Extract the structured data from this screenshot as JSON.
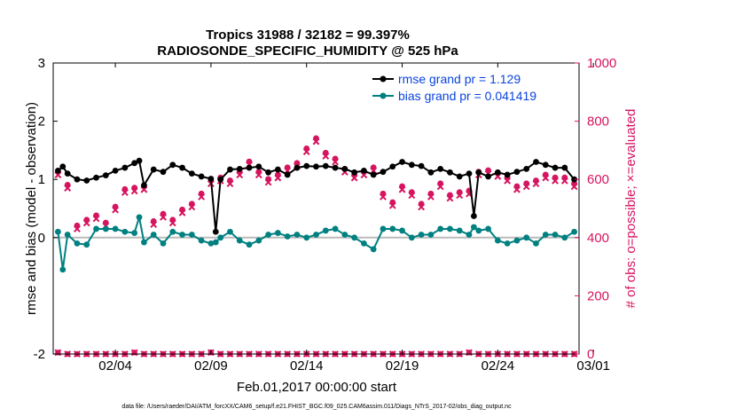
{
  "chart_data": {
    "type": "line",
    "title": "Tropics 31988 / 32182 = 99.397%",
    "subtitle": "RADIOSONDE_SPECIFIC_HUMIDITY @ 525 hPa",
    "xlabel": "Feb.01,2017 00:00:00 start",
    "ylabel": "rmse and bias (model - observation)",
    "ylabel_right": "# of obs: o=possible; ×=evaluated",
    "footnote": "data file: /Users/raeder/DAI/ATM_forcXX/CAM6_setup/f.e21.FHIST_BGC.f09_025.CAM6assim.011/Diags_NTrS_2017-02/obs_diag_output.nc",
    "xlim": [
      0.75,
      28.25
    ],
    "ylim": [
      -2,
      3
    ],
    "ylim_right": [
      0,
      1000
    ],
    "x_ticks": [
      {
        "value": 4,
        "label": "02/04"
      },
      {
        "value": 9,
        "label": "02/09"
      },
      {
        "value": 14,
        "label": "02/14"
      },
      {
        "value": 19,
        "label": "02/19"
      },
      {
        "value": 24,
        "label": "02/24"
      },
      {
        "value": 29,
        "label": "03/01"
      }
    ],
    "y_ticks": [
      "-2",
      "0",
      "1",
      "2",
      "3"
    ],
    "y_ticks_right": [
      "0",
      "200",
      "400",
      "600",
      "800",
      "1000"
    ],
    "colors": {
      "rmse": "#000000",
      "bias": "#008080",
      "obs": "#d6145f",
      "legend_text": "#0a44dd",
      "zero_line": "#bbbbbb"
    },
    "legend": [
      {
        "name": "rmse grand pr = 1.129",
        "color": "#000000"
      },
      {
        "name": "bias grand pr = 0.041419",
        "color": "#008080"
      }
    ],
    "series": [
      {
        "name": "rmse",
        "axis": "left",
        "x": [
          1,
          1.25,
          1.5,
          2,
          2.5,
          3,
          3.5,
          4,
          4.5,
          5,
          5.25,
          5.5,
          6,
          6.5,
          7,
          7.5,
          8,
          8.5,
          9,
          9.25,
          9.5,
          10,
          10.5,
          11,
          11.5,
          12,
          12.5,
          13,
          13.5,
          14,
          14.5,
          15,
          15.5,
          16,
          16.5,
          17,
          17.5,
          18,
          18.5,
          19,
          19.5,
          20,
          20.5,
          21,
          21.5,
          22,
          22.5,
          22.75,
          23,
          23.5,
          24,
          24.5,
          25,
          25.5,
          26,
          26.5,
          27,
          27.5,
          28
        ],
        "values": [
          1.15,
          1.22,
          1.1,
          1.0,
          0.98,
          1.03,
          1.07,
          1.15,
          1.2,
          1.28,
          1.32,
          0.9,
          1.17,
          1.13,
          1.25,
          1.2,
          1.1,
          1.05,
          1.01,
          0.1,
          1.0,
          1.17,
          1.18,
          1.2,
          1.22,
          1.12,
          1.17,
          1.08,
          1.2,
          1.23,
          1.22,
          1.23,
          1.2,
          1.18,
          1.12,
          1.15,
          1.08,
          1.13,
          1.22,
          1.3,
          1.25,
          1.23,
          1.12,
          1.18,
          1.12,
          1.05,
          1.1,
          0.37,
          1.12,
          1.05,
          1.12,
          1.08,
          1.13,
          1.18,
          1.3,
          1.25,
          1.2,
          1.2,
          1.0
        ]
      },
      {
        "name": "bias",
        "axis": "left",
        "x": [
          1,
          1.25,
          1.5,
          2,
          2.5,
          3,
          3.5,
          4,
          4.5,
          5,
          5.25,
          5.5,
          6,
          6.5,
          7,
          7.5,
          8,
          8.5,
          9,
          9.25,
          9.5,
          10,
          10.5,
          11,
          11.5,
          12,
          12.5,
          13,
          13.5,
          14,
          14.5,
          15,
          15.5,
          16,
          16.5,
          17,
          17.5,
          18,
          18.5,
          19,
          19.5,
          20,
          20.5,
          21,
          21.5,
          22,
          22.5,
          22.75,
          23,
          23.5,
          24,
          24.5,
          25,
          25.5,
          26,
          26.5,
          27,
          27.5,
          28
        ],
        "values": [
          0.1,
          -0.55,
          0.05,
          -0.1,
          -0.12,
          0.15,
          0.15,
          0.15,
          0.1,
          0.08,
          0.35,
          -0.08,
          0.05,
          -0.1,
          0.1,
          0.05,
          0.05,
          -0.05,
          -0.1,
          -0.08,
          0.0,
          0.1,
          -0.05,
          -0.12,
          -0.05,
          0.05,
          0.08,
          0.02,
          0.05,
          0.0,
          0.05,
          0.12,
          0.15,
          0.05,
          0.0,
          -0.1,
          -0.2,
          0.15,
          0.15,
          0.12,
          0.0,
          0.05,
          0.05,
          0.15,
          0.15,
          0.12,
          0.05,
          0.18,
          0.12,
          0.15,
          -0.05,
          -0.1,
          -0.05,
          0.0,
          -0.1,
          0.05,
          0.05,
          0.0,
          0.1
        ]
      },
      {
        "name": "obs possible",
        "axis": "right",
        "x": [
          1,
          1.5,
          2,
          2.5,
          3,
          3.5,
          4,
          4.5,
          5,
          5.5,
          6,
          6.5,
          7,
          7.5,
          8,
          8.5,
          9,
          9.5,
          10,
          10.5,
          11,
          11.5,
          12,
          12.5,
          13,
          13.5,
          14,
          14.5,
          15,
          15.5,
          16,
          16.5,
          17,
          17.5,
          18,
          18.5,
          19,
          19.5,
          20,
          20.5,
          21,
          21.5,
          22,
          22.5,
          23,
          23.5,
          24,
          24.5,
          25,
          25.5,
          26,
          26.5,
          27,
          27.5,
          28
        ],
        "values": [
          620,
          575,
          435,
          455,
          470,
          445,
          500,
          560,
          565,
          570,
          450,
          475,
          455,
          490,
          510,
          545,
          590,
          600,
          590,
          620,
          655,
          620,
          595,
          610,
          635,
          650,
          700,
          735,
          685,
          665,
          630,
          610,
          620,
          635,
          545,
          515,
          570,
          550,
          510,
          545,
          580,
          540,
          550,
          555,
          620,
          625,
          615,
          600,
          570,
          580,
          590,
          610,
          600,
          600,
          580
        ]
      },
      {
        "name": "obs evaluated",
        "axis": "right",
        "x": [
          1,
          1.5,
          2,
          2.5,
          3,
          3.5,
          4,
          4.5,
          5,
          5.5,
          6,
          6.5,
          7,
          7.5,
          8,
          8.5,
          9,
          9.5,
          10,
          10.5,
          11,
          11.5,
          12,
          12.5,
          13,
          13.5,
          14,
          14.5,
          15,
          15.5,
          16,
          16.5,
          17,
          17.5,
          18,
          18.5,
          19,
          19.5,
          20,
          20.5,
          21,
          21.5,
          22,
          22.5,
          23,
          23.5,
          24,
          24.5,
          25,
          25.5,
          26,
          26.5,
          27,
          27.5,
          28
        ],
        "values": [
          615,
          570,
          430,
          450,
          465,
          440,
          495,
          555,
          560,
          565,
          445,
          470,
          450,
          485,
          505,
          540,
          585,
          595,
          585,
          615,
          650,
          615,
          590,
          605,
          630,
          645,
          695,
          730,
          680,
          660,
          625,
          605,
          615,
          630,
          540,
          510,
          565,
          545,
          505,
          540,
          575,
          535,
          545,
          550,
          615,
          620,
          610,
          595,
          565,
          575,
          585,
          605,
          595,
          595,
          575
        ]
      },
      {
        "name": "obs baseline",
        "axis": "right",
        "x": [
          1,
          1.5,
          2,
          2.5,
          3,
          3.5,
          4,
          4.5,
          5,
          5.5,
          6,
          6.5,
          7,
          7.5,
          8,
          8.5,
          9,
          9.5,
          10,
          10.5,
          11,
          11.5,
          12,
          12.5,
          13,
          13.5,
          14,
          14.5,
          15,
          15.5,
          16,
          16.5,
          17,
          17.5,
          18,
          18.5,
          19,
          19.5,
          20,
          20.5,
          21,
          21.5,
          22,
          22.5,
          23,
          23.5,
          24,
          24.5,
          25,
          25.5,
          26,
          26.5,
          27,
          27.5,
          28
        ],
        "values": [
          5,
          0,
          0,
          0,
          0,
          0,
          0,
          0,
          5,
          0,
          0,
          0,
          0,
          0,
          0,
          0,
          5,
          0,
          0,
          0,
          0,
          0,
          0,
          0,
          0,
          0,
          0,
          0,
          0,
          0,
          0,
          0,
          0,
          0,
          0,
          0,
          0,
          0,
          0,
          0,
          0,
          0,
          0,
          5,
          0,
          0,
          0,
          0,
          0,
          0,
          0,
          0,
          0,
          0,
          0
        ]
      }
    ]
  }
}
